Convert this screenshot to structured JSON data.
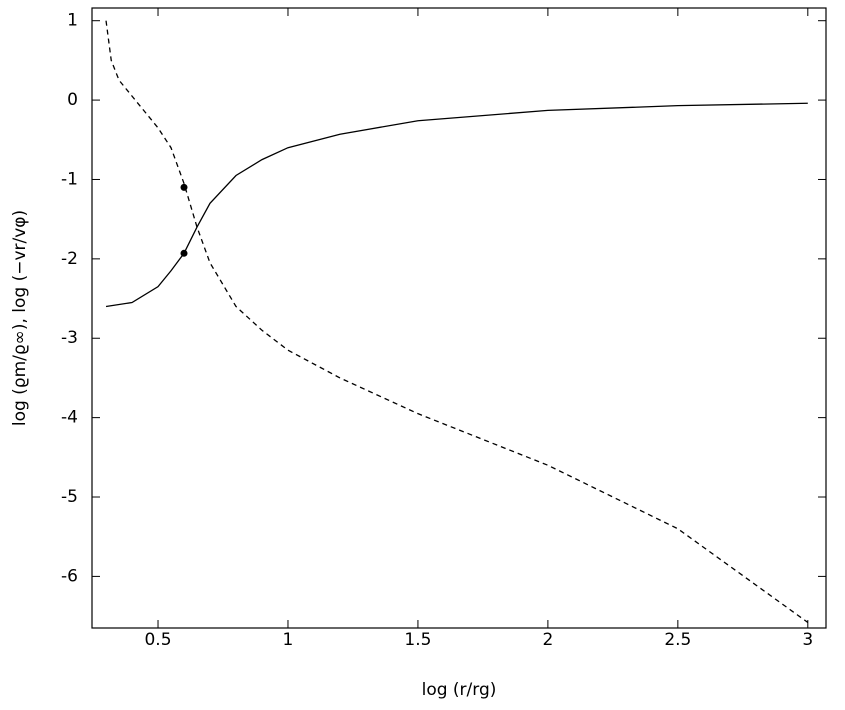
{
  "chart_data": {
    "type": "line",
    "xlabel": "log (r/rg)",
    "ylabel": "log (ϱm/ϱ∞), log (−vr/vφ)",
    "xlim": [
      0.246,
      3.07
    ],
    "ylim": [
      -6.65,
      1.16
    ],
    "xticks": [
      0.5,
      1,
      1.5,
      2,
      2.5,
      3
    ],
    "yticks": [
      -6,
      -5,
      -4,
      -3,
      -2,
      -1,
      0,
      1
    ],
    "series": [
      {
        "color": "#000000",
        "style": "solid",
        "x": [
          0.3,
          0.4,
          0.5,
          0.55,
          0.6,
          0.65,
          0.7,
          0.8,
          0.9,
          1.0,
          1.2,
          1.5,
          2.0,
          2.5,
          3.0
        ],
        "values": [
          -2.6,
          -2.55,
          -2.35,
          -2.15,
          -1.93,
          -1.6,
          -1.3,
          -0.95,
          -0.75,
          -0.6,
          -0.43,
          -0.26,
          -0.13,
          -0.07,
          -0.04
        ]
      },
      {
        "color": "#000000",
        "style": "dashed",
        "x": [
          0.3,
          0.32,
          0.35,
          0.4,
          0.5,
          0.55,
          0.6,
          0.65,
          0.7,
          0.8,
          0.9,
          1.0,
          1.2,
          1.5,
          2.0,
          2.5,
          3.0
        ],
        "values": [
          1.0,
          0.5,
          0.25,
          0.05,
          -0.35,
          -0.6,
          -1.05,
          -1.6,
          -2.05,
          -2.6,
          -2.9,
          -3.15,
          -3.5,
          -3.95,
          -4.6,
          -5.4,
          -6.58
        ]
      },
      {
        "color": "#000000",
        "style": "dots",
        "x": [
          0.6,
          0.6
        ],
        "values": [
          -1.1,
          -1.93
        ]
      }
    ]
  }
}
